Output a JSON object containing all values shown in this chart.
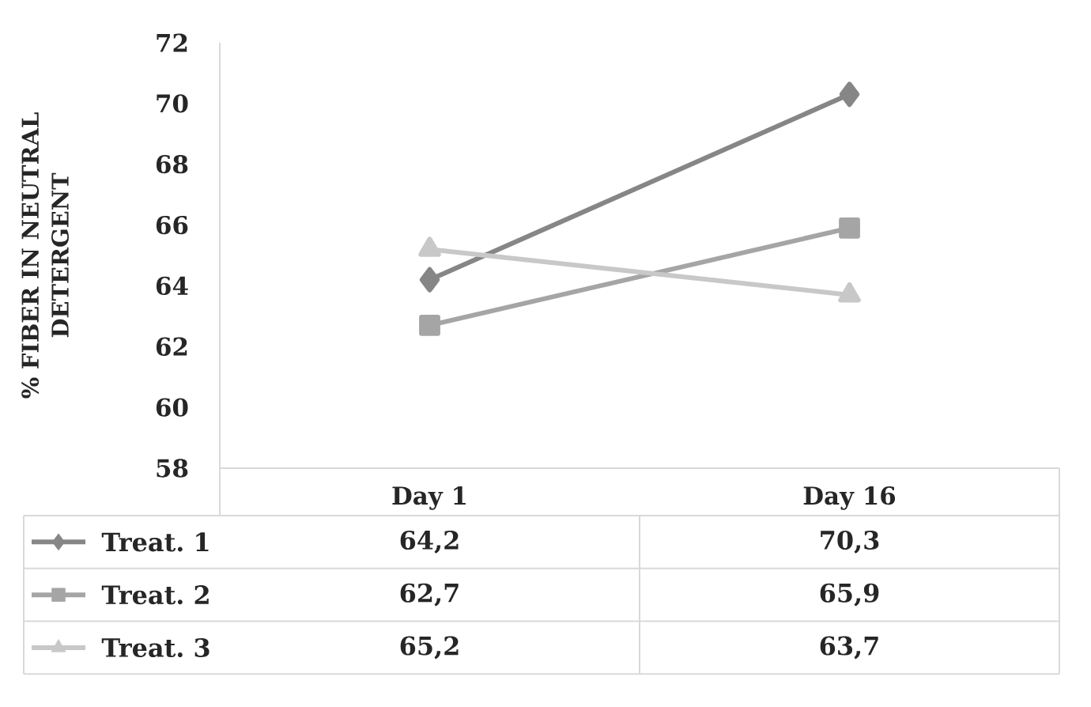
{
  "chart_data": {
    "type": "line",
    "ylabel": "% FIBER IN NEUTRAL DETERGENT",
    "categories": [
      "Day 1",
      "Day 16"
    ],
    "series": [
      {
        "name": "Treat. 1",
        "color": "#868686",
        "marker": "diamond",
        "values": [
          64.2,
          70.3
        ],
        "value_labels": [
          "64,2",
          "70,3"
        ]
      },
      {
        "name": "Treat. 2",
        "color": "#a5a5a5",
        "marker": "square",
        "values": [
          62.7,
          65.9
        ],
        "value_labels": [
          "62,7",
          "65,9"
        ]
      },
      {
        "name": "Treat. 3",
        "color": "#c8c8c8",
        "marker": "triangle",
        "values": [
          65.2,
          63.7
        ],
        "value_labels": [
          "65,2",
          "63,7"
        ]
      }
    ],
    "ylim": [
      58,
      72
    ],
    "yticks": [
      58,
      60,
      62,
      64,
      66,
      68,
      70,
      72
    ],
    "legend": "bottom left",
    "line_style": "solid"
  }
}
